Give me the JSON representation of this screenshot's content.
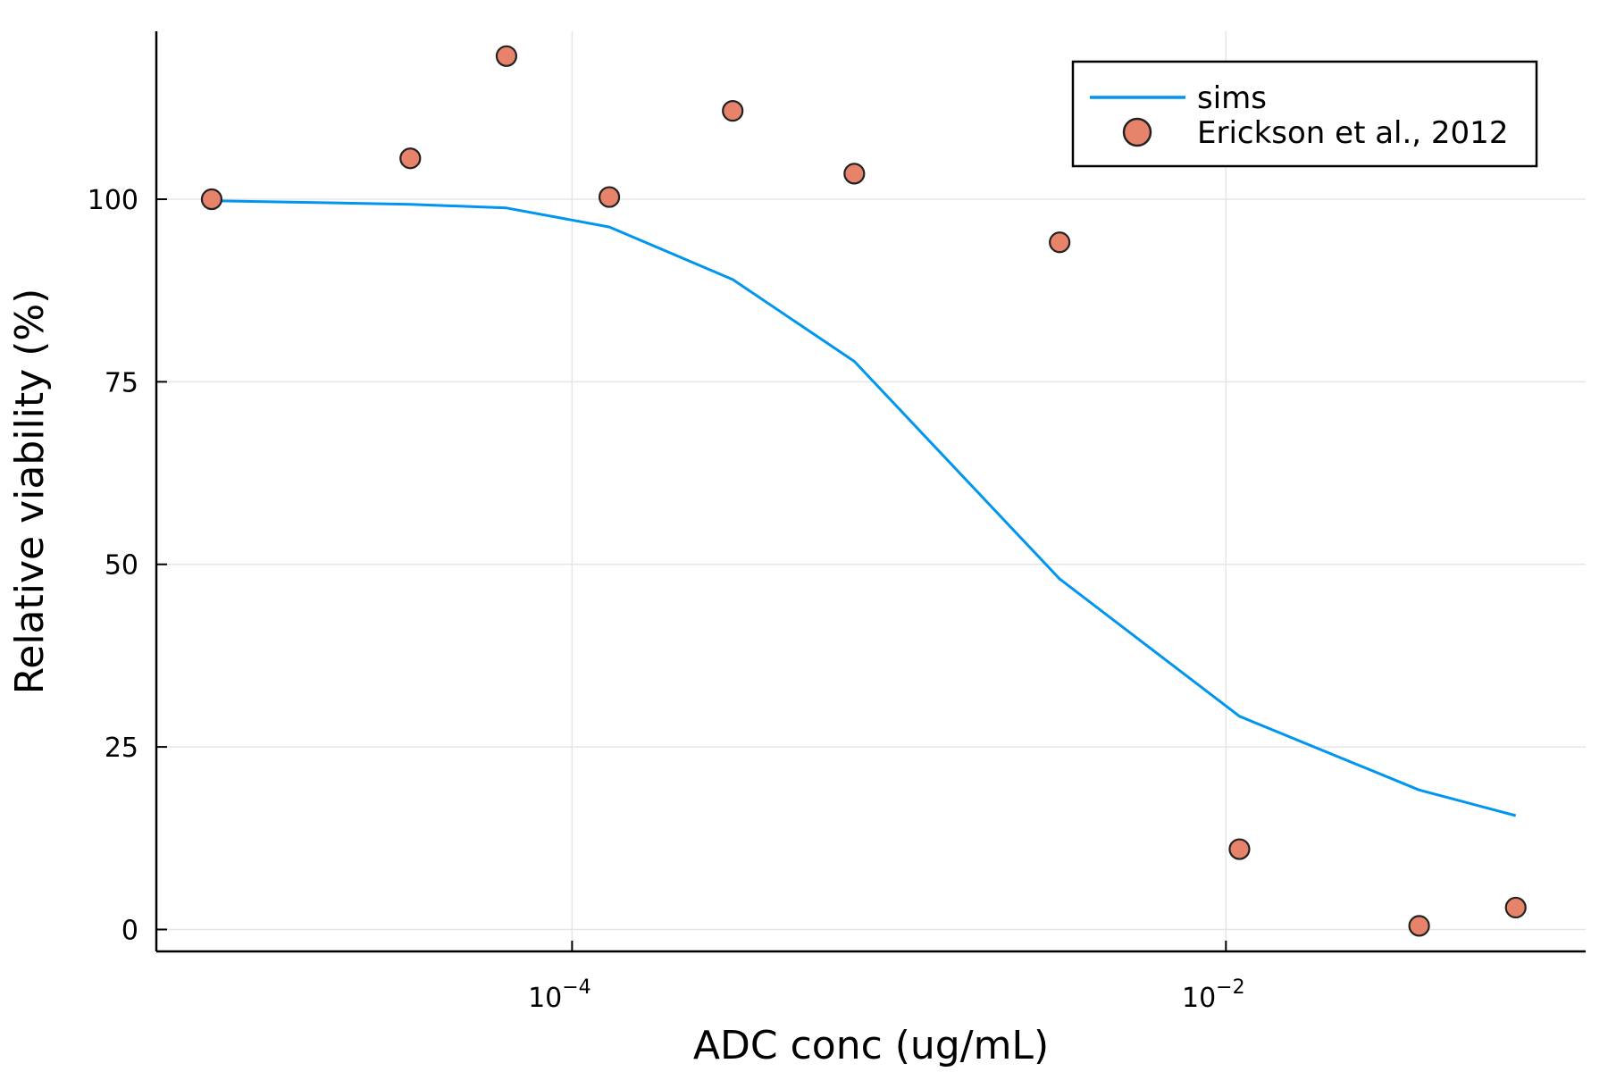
{
  "chart_data": {
    "type": "line",
    "xlabel": "ADC conc (ug/mL)",
    "ylabel": "Relative viability (%)",
    "xscale": "log10",
    "xlim": [
      5.35e-06,
      0.126
    ],
    "ylim": [
      -3,
      123
    ],
    "xticks": [
      {
        "value": 0.0001,
        "base": "10",
        "exp": "−4"
      },
      {
        "value": 0.01,
        "base": "10",
        "exp": "−2"
      }
    ],
    "yticks": [
      0,
      25,
      50,
      75,
      100
    ],
    "grid": true,
    "legend_position": "top-right",
    "colors": {
      "sims": "#0096f0",
      "data": "#e8836b",
      "marker_edge": "#222222"
    },
    "series": [
      {
        "name": "sims",
        "kind": "line",
        "x": [
          7.9e-06,
          3.2e-05,
          6.3e-05,
          0.00013,
          0.00031,
          0.00073,
          0.0031,
          0.011,
          0.039,
          0.077
        ],
        "y": [
          99.8,
          99.3,
          98.8,
          96.2,
          89.0,
          77.8,
          48.0,
          29.2,
          19.1,
          15.6
        ]
      },
      {
        "name": "Erickson et al., 2012",
        "kind": "scatter",
        "x": [
          7.9e-06,
          3.2e-05,
          6.3e-05,
          0.00013,
          0.00031,
          0.00073,
          0.0031,
          0.011,
          0.039,
          0.077
        ],
        "y": [
          100,
          105.6,
          119.6,
          100.3,
          112.1,
          103.5,
          94.1,
          11.0,
          0.5,
          3.0
        ]
      }
    ]
  }
}
